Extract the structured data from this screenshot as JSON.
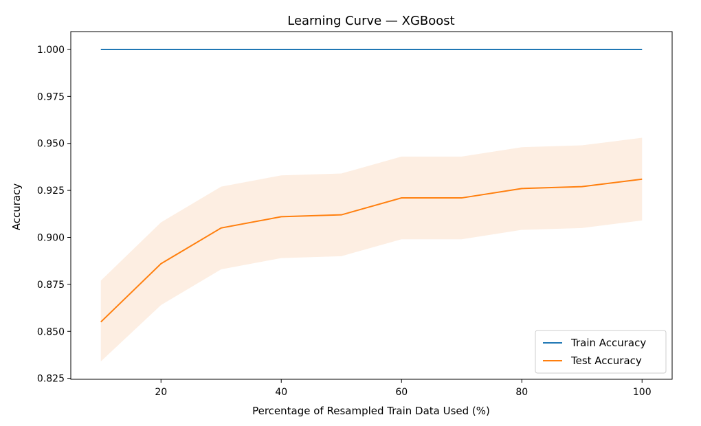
{
  "chart_data": {
    "type": "line",
    "title": "Learning Curve — XGBoost",
    "xlabel": "Percentage of Resampled Train Data Used (%)",
    "ylabel": "Accuracy",
    "xlim": [
      5,
      105
    ],
    "ylim": [
      0.8245,
      1.0095
    ],
    "xticks": [
      20,
      40,
      60,
      80,
      100
    ],
    "yticks": [
      0.825,
      0.85,
      0.875,
      0.9,
      0.925,
      0.95,
      0.975,
      1.0
    ],
    "ytick_labels": [
      "0.825",
      "0.850",
      "0.875",
      "0.900",
      "0.925",
      "0.950",
      "0.975",
      "1.000"
    ],
    "x": [
      10,
      20,
      30,
      40,
      50,
      60,
      70,
      80,
      90,
      100
    ],
    "series": [
      {
        "name": "Train Accuracy",
        "color": "#1f77b4",
        "values": [
          1.0,
          1.0,
          1.0,
          1.0,
          1.0,
          1.0,
          1.0,
          1.0,
          1.0,
          1.0
        ]
      },
      {
        "name": "Test Accuracy",
        "color": "#ff7f0e",
        "values": [
          0.855,
          0.886,
          0.905,
          0.911,
          0.912,
          0.921,
          0.921,
          0.926,
          0.927,
          0.931
        ],
        "band_lower": [
          0.834,
          0.864,
          0.883,
          0.889,
          0.89,
          0.899,
          0.899,
          0.904,
          0.905,
          0.909
        ],
        "band_upper": [
          0.877,
          0.908,
          0.927,
          0.933,
          0.934,
          0.943,
          0.943,
          0.948,
          0.949,
          0.953
        ],
        "band_color": "#fdeee2"
      }
    ],
    "legend_position": "bottom-right",
    "grid": false
  }
}
